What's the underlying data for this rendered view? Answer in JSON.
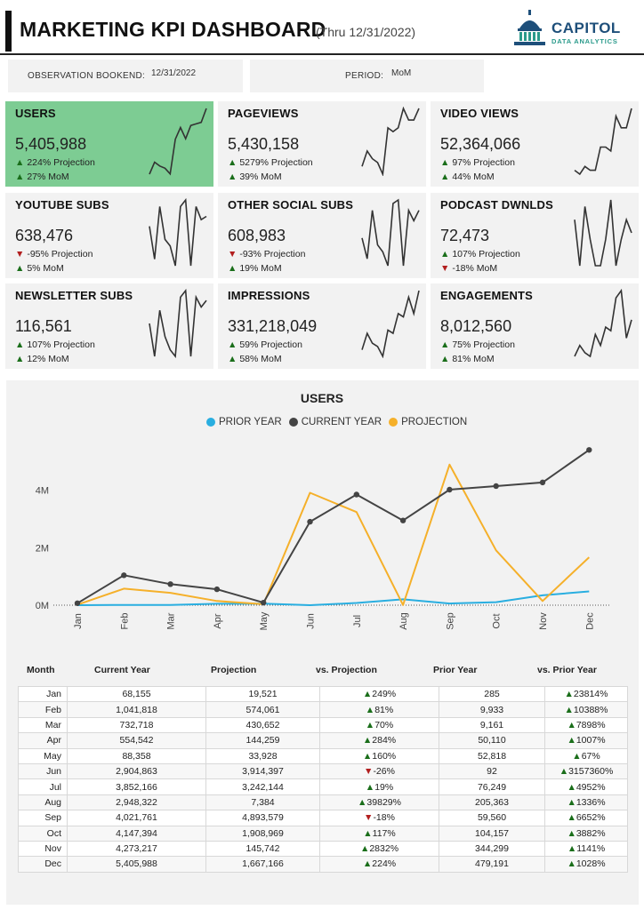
{
  "header": {
    "title": "MARKETING KPI DASHBOARD",
    "subtitle": "(Thru 12/31/2022)",
    "logo_name": "CAPITOL",
    "logo_tag": "DATA ANALYTICS"
  },
  "filters": {
    "bookend_label": "OBSERVATION BOOKEND:",
    "bookend_value": "12/31/2022",
    "period_label": "PERIOD:",
    "period_value": "MoM"
  },
  "colors": {
    "highlight_card": "#7dcc93",
    "prior_year": "#29aee0",
    "current_year": "#444444",
    "projection": "#f5b02a",
    "up": "#1a6e1a",
    "down": "#b21f1f"
  },
  "cards": [
    {
      "title": "USERS",
      "value": "5,405,988",
      "r1_arrow": "▲",
      "r1_text": " 224% Projection",
      "r1_dir": "up",
      "r2_arrow": "▲",
      "r2_text": " 27% MoM",
      "r2_dir": "up",
      "spark": [
        68155,
        1041818,
        732718,
        554542,
        88358,
        2904863,
        3852166,
        2948322,
        4021761,
        4147394,
        4273217,
        5405988
      ]
    },
    {
      "title": "PAGEVIEWS",
      "value": "5,430,158",
      "r1_arrow": "▲",
      "r1_text": " 5279% Projection",
      "r1_dir": "up",
      "r2_arrow": "▲",
      "r2_text": " 39% MoM",
      "r2_dir": "up",
      "spark": [
        2,
        4,
        3,
        2.5,
        1,
        7,
        6.5,
        7,
        9.5,
        8,
        8,
        9.5
      ]
    },
    {
      "title": "VIDEO VIEWS",
      "value": "52,364,066",
      "r1_arrow": "▲",
      "r1_text": " 97% Projection",
      "r1_dir": "up",
      "r2_arrow": "▲",
      "r2_text": " 44% MoM",
      "r2_dir": "up",
      "spark": [
        2,
        1.5,
        2.5,
        2,
        2,
        5,
        5,
        4.5,
        9,
        7.5,
        7.5,
        10
      ]
    },
    {
      "title": "YOUTUBE SUBS",
      "value": "638,476",
      "r1_arrow": "▼",
      "r1_text": " -95% Projection",
      "r1_dir": "down",
      "r2_arrow": "▲",
      "r2_text": " 5% MoM",
      "r2_dir": "up",
      "spark": [
        6,
        1,
        9,
        4,
        3,
        0,
        9,
        10,
        0,
        9,
        7,
        7.5
      ]
    },
    {
      "title": "OTHER SOCIAL SUBS",
      "value": "608,983",
      "r1_arrow": "▼",
      "r1_text": " -93% Projection",
      "r1_dir": "down",
      "r2_arrow": "▲",
      "r2_text": " 19% MoM",
      "r2_dir": "up",
      "spark": [
        4,
        1,
        8,
        3,
        2,
        0,
        9,
        9.5,
        0,
        8,
        6.5,
        8
      ]
    },
    {
      "title": "PODCAST DWNLDS",
      "value": "72,473",
      "r1_arrow": "▲",
      "r1_text": " 107% Projection",
      "r1_dir": "up",
      "r2_arrow": "▼",
      "r2_text": " -18% MoM",
      "r2_dir": "down",
      "spark": [
        7,
        0,
        9,
        4,
        0,
        0,
        4,
        10,
        0,
        4,
        7,
        5
      ]
    },
    {
      "title": "NEWSLETTER SUBS",
      "value": "116,561",
      "r1_arrow": "▲",
      "r1_text": " 107% Projection",
      "r1_dir": "up",
      "r2_arrow": "▲",
      "r2_text": " 12% MoM",
      "r2_dir": "up",
      "spark": [
        5,
        0,
        7,
        3,
        1,
        0,
        9,
        10,
        0,
        9,
        7.5,
        8.5
      ]
    },
    {
      "title": "IMPRESSIONS",
      "value": "331,218,049",
      "r1_arrow": "▲",
      "r1_text": " 59% Projection",
      "r1_dir": "up",
      "r2_arrow": "▲",
      "r2_text": " 58% MoM",
      "r2_dir": "up",
      "spark": [
        1,
        3.5,
        2,
        1.5,
        0,
        4,
        3.5,
        6.5,
        6,
        9,
        6.5,
        10
      ]
    },
    {
      "title": "ENGAGEMENTS",
      "value": "8,012,560",
      "r1_arrow": "▲",
      "r1_text": " 75% Projection",
      "r1_dir": "up",
      "r2_arrow": "▲",
      "r2_text": " 81% MoM",
      "r2_dir": "up",
      "spark": [
        1,
        2.5,
        1.5,
        1,
        4,
        2.5,
        5,
        4.5,
        9,
        10,
        3.5,
        6
      ]
    }
  ],
  "chart_data": {
    "type": "line",
    "title": "USERS",
    "categories": [
      "Jan",
      "Feb",
      "Mar",
      "Apr",
      "May",
      "Jun",
      "Jul",
      "Aug",
      "Sep",
      "Oct",
      "Nov",
      "Dec"
    ],
    "series": [
      {
        "name": "PRIOR YEAR",
        "color": "#29aee0",
        "values": [
          285,
          9933,
          9161,
          50110,
          52818,
          92,
          76249,
          205363,
          59560,
          104157,
          344299,
          479191
        ]
      },
      {
        "name": "CURRENT YEAR",
        "color": "#444444",
        "values": [
          68155,
          1041818,
          732718,
          554542,
          88358,
          2904863,
          3852166,
          2948322,
          4021761,
          4147394,
          4273217,
          5405988
        ]
      },
      {
        "name": "PROJECTION",
        "color": "#f5b02a",
        "values": [
          19521,
          574061,
          430652,
          144259,
          33928,
          3914397,
          3242144,
          7384,
          4893579,
          1908969,
          145742,
          1667166
        ]
      }
    ],
    "yticks": [
      "0M",
      "2M",
      "4M"
    ],
    "ylim": [
      0,
      5600000
    ],
    "grid": false,
    "legend": "top-center"
  },
  "table": {
    "headers": [
      "Month",
      "Current Year",
      "Projection",
      "vs. Projection",
      "Prior Year",
      "vs. Prior Year"
    ],
    "rows": [
      {
        "month": "Jan",
        "current": "68,155",
        "projection": "19,521",
        "vs_proj_arrow": "▲",
        "vs_proj": "249%",
        "vs_proj_dir": "up",
        "prior": "285",
        "vs_prior_arrow": "▲",
        "vs_prior": "23814%",
        "vs_prior_dir": "up"
      },
      {
        "month": "Feb",
        "current": "1,041,818",
        "projection": "574,061",
        "vs_proj_arrow": "▲",
        "vs_proj": "81%",
        "vs_proj_dir": "up",
        "prior": "9,933",
        "vs_prior_arrow": "▲",
        "vs_prior": "10388%",
        "vs_prior_dir": "up"
      },
      {
        "month": "Mar",
        "current": "732,718",
        "projection": "430,652",
        "vs_proj_arrow": "▲",
        "vs_proj": "70%",
        "vs_proj_dir": "up",
        "prior": "9,161",
        "vs_prior_arrow": "▲",
        "vs_prior": "7898%",
        "vs_prior_dir": "up"
      },
      {
        "month": "Apr",
        "current": "554,542",
        "projection": "144,259",
        "vs_proj_arrow": "▲",
        "vs_proj": "284%",
        "vs_proj_dir": "up",
        "prior": "50,110",
        "vs_prior_arrow": "▲",
        "vs_prior": "1007%",
        "vs_prior_dir": "up"
      },
      {
        "month": "May",
        "current": "88,358",
        "projection": "33,928",
        "vs_proj_arrow": "▲",
        "vs_proj": "160%",
        "vs_proj_dir": "up",
        "prior": "52,818",
        "vs_prior_arrow": "▲",
        "vs_prior": "67%",
        "vs_prior_dir": "up"
      },
      {
        "month": "Jun",
        "current": "2,904,863",
        "projection": "3,914,397",
        "vs_proj_arrow": "▼",
        "vs_proj": "-26%",
        "vs_proj_dir": "down",
        "prior": "92",
        "vs_prior_arrow": "▲",
        "vs_prior": "3157360%",
        "vs_prior_dir": "up"
      },
      {
        "month": "Jul",
        "current": "3,852,166",
        "projection": "3,242,144",
        "vs_proj_arrow": "▲",
        "vs_proj": "19%",
        "vs_proj_dir": "up",
        "prior": "76,249",
        "vs_prior_arrow": "▲",
        "vs_prior": "4952%",
        "vs_prior_dir": "up"
      },
      {
        "month": "Aug",
        "current": "2,948,322",
        "projection": "7,384",
        "vs_proj_arrow": "▲",
        "vs_proj": "39829%",
        "vs_proj_dir": "up",
        "prior": "205,363",
        "vs_prior_arrow": "▲",
        "vs_prior": "1336%",
        "vs_prior_dir": "up"
      },
      {
        "month": "Sep",
        "current": "4,021,761",
        "projection": "4,893,579",
        "vs_proj_arrow": "▼",
        "vs_proj": "-18%",
        "vs_proj_dir": "down",
        "prior": "59,560",
        "vs_prior_arrow": "▲",
        "vs_prior": "6652%",
        "vs_prior_dir": "up"
      },
      {
        "month": "Oct",
        "current": "4,147,394",
        "projection": "1,908,969",
        "vs_proj_arrow": "▲",
        "vs_proj": "117%",
        "vs_proj_dir": "up",
        "prior": "104,157",
        "vs_prior_arrow": "▲",
        "vs_prior": "3882%",
        "vs_prior_dir": "up"
      },
      {
        "month": "Nov",
        "current": "4,273,217",
        "projection": "145,742",
        "vs_proj_arrow": "▲",
        "vs_proj": "2832%",
        "vs_proj_dir": "up",
        "prior": "344,299",
        "vs_prior_arrow": "▲",
        "vs_prior": "1141%",
        "vs_prior_dir": "up"
      },
      {
        "month": "Dec",
        "current": "5,405,988",
        "projection": "1,667,166",
        "vs_proj_arrow": "▲",
        "vs_proj": "224%",
        "vs_proj_dir": "up",
        "prior": "479,191",
        "vs_prior_arrow": "▲",
        "vs_prior": "1028%",
        "vs_prior_dir": "up"
      }
    ]
  }
}
